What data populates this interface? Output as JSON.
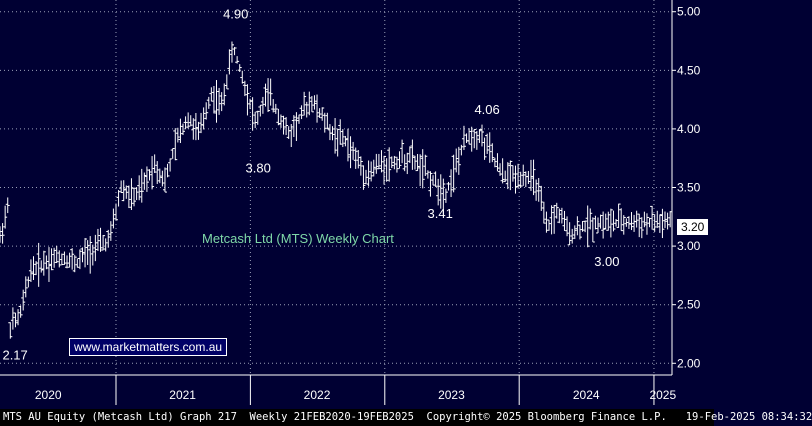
{
  "chart_data": {
    "type": "line",
    "style": "weekly-ohlc-bars",
    "title": "Metcash Ltd (MTS) Weekly Chart",
    "xlabel": "",
    "ylabel": "",
    "ylim": [
      1.9,
      5.1
    ],
    "yticks": [
      "2.00",
      "2.50",
      "3.00",
      "3.50",
      "4.00",
      "4.50",
      "5.00"
    ],
    "xticks": [
      "2020",
      "2021",
      "2022",
      "2023",
      "2024",
      "2025"
    ],
    "grid": true,
    "last_price": "3.20",
    "annotations": [
      {
        "label": "4.90",
        "x": "2021-11",
        "y": 4.9
      },
      {
        "label": "3.80",
        "x": "2022-01",
        "y": 3.8
      },
      {
        "label": "4.06",
        "x": "2023-10",
        "y": 4.06
      },
      {
        "label": "3.41",
        "x": "2023-06",
        "y": 3.41
      },
      {
        "label": "3.00",
        "x": "2024-09",
        "y": 3.0
      },
      {
        "label": "2.17",
        "x": "2020-03",
        "y": 2.17
      }
    ],
    "series": [
      {
        "points": [
          [
            "2020-02",
            3.0
          ],
          [
            "2020-03",
            3.35
          ],
          [
            "2020-03",
            2.3
          ],
          [
            "2020-04",
            2.4
          ],
          [
            "2020-05",
            2.8
          ],
          [
            "2020-06",
            2.85
          ],
          [
            "2020-07",
            2.9
          ],
          [
            "2020-08",
            2.9
          ],
          [
            "2020-09",
            2.85
          ],
          [
            "2020-10",
            2.95
          ],
          [
            "2020-11",
            3.0
          ],
          [
            "2020-12",
            3.05
          ],
          [
            "2021-01",
            3.5
          ],
          [
            "2021-02",
            3.4
          ],
          [
            "2021-03",
            3.5
          ],
          [
            "2021-04",
            3.7
          ],
          [
            "2021-05",
            3.55
          ],
          [
            "2021-06",
            3.9
          ],
          [
            "2021-07",
            4.1
          ],
          [
            "2021-08",
            3.95
          ],
          [
            "2021-09",
            4.3
          ],
          [
            "2021-10",
            4.2
          ],
          [
            "2021-11",
            4.7
          ],
          [
            "2021-12",
            4.4
          ],
          [
            "2022-01",
            4.05
          ],
          [
            "2022-02",
            4.3
          ],
          [
            "2022-03",
            4.15
          ],
          [
            "2022-04",
            3.95
          ],
          [
            "2022-05",
            4.1
          ],
          [
            "2022-06",
            4.25
          ],
          [
            "2022-07",
            4.1
          ],
          [
            "2022-08",
            3.95
          ],
          [
            "2022-09",
            3.9
          ],
          [
            "2022-10",
            3.75
          ],
          [
            "2022-11",
            3.6
          ],
          [
            "2022-12",
            3.7
          ],
          [
            "2023-01",
            3.7
          ],
          [
            "2023-02",
            3.75
          ],
          [
            "2023-03",
            3.75
          ],
          [
            "2023-04",
            3.65
          ],
          [
            "2023-05",
            3.55
          ],
          [
            "2023-06",
            3.45
          ],
          [
            "2023-07",
            3.7
          ],
          [
            "2023-08",
            3.95
          ],
          [
            "2023-09",
            3.95
          ],
          [
            "2023-10",
            3.8
          ],
          [
            "2023-11",
            3.6
          ],
          [
            "2023-12",
            3.6
          ],
          [
            "2024-01",
            3.6
          ],
          [
            "2024-02",
            3.55
          ],
          [
            "2024-03",
            3.15
          ],
          [
            "2024-04",
            3.3
          ],
          [
            "2024-05",
            3.1
          ],
          [
            "2024-06",
            3.15
          ],
          [
            "2024-07",
            3.2
          ]
        ]
      }
    ]
  },
  "watermark": "www.marketmatters.com.au",
  "footer": "MTS AU Equity (Metcash Ltd) Graph 217  Weekly 21FEB2020-19FEB2025  Copyright© 2025 Bloomberg Finance L.P.   19-Feb-2025 08:34:32",
  "colors": {
    "background": "#000033",
    "bars": "#ffffff",
    "title": "#7fd8a8"
  }
}
